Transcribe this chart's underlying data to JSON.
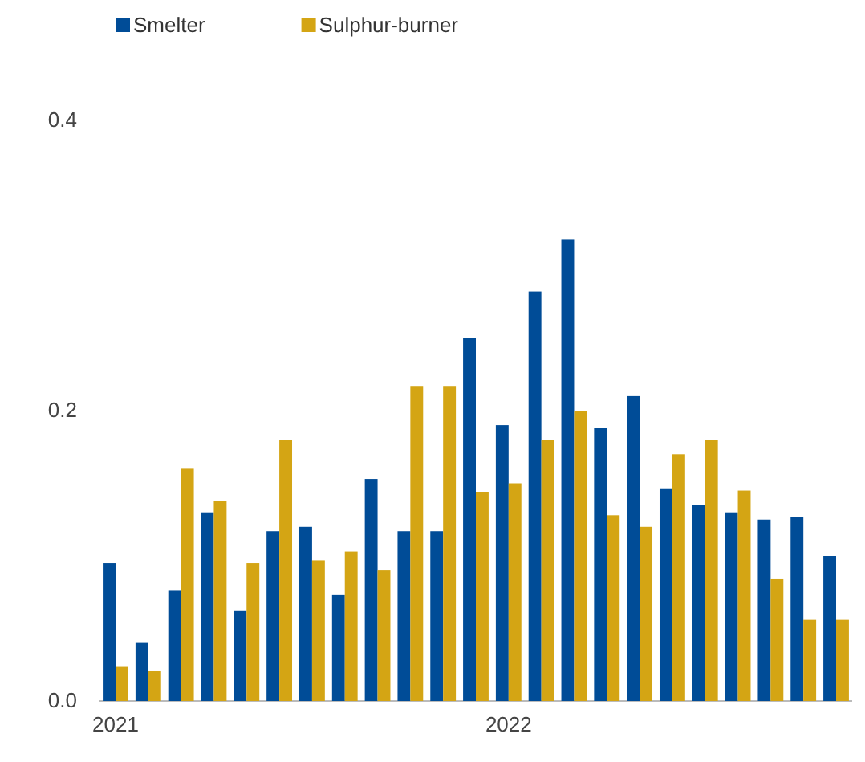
{
  "chart_data": {
    "type": "bar",
    "categories": [
      "2021",
      null,
      null,
      null,
      null,
      null,
      null,
      null,
      null,
      null,
      null,
      null,
      "2022",
      null,
      null,
      null,
      null,
      null,
      null,
      null,
      null,
      null,
      null
    ],
    "series": [
      {
        "name": "Smelter",
        "color": "#004c97",
        "values": [
          0.095,
          0.04,
          0.076,
          0.13,
          0.062,
          0.117,
          0.12,
          0.073,
          0.153,
          0.117,
          0.117,
          0.25,
          0.19,
          0.282,
          0.318,
          0.188,
          0.21,
          0.146,
          0.135,
          0.13,
          0.125,
          0.127,
          0.1
        ]
      },
      {
        "name": "Sulphur-burner",
        "color": "#d4a514",
        "values": [
          0.024,
          0.021,
          0.16,
          0.138,
          0.095,
          0.18,
          0.097,
          0.103,
          0.09,
          0.217,
          0.217,
          0.144,
          0.15,
          0.18,
          0.2,
          0.128,
          0.12,
          0.17,
          0.18,
          0.145,
          0.084,
          0.056,
          0.056
        ]
      }
    ],
    "ylim": [
      0,
      0.4
    ],
    "yticks": [
      {
        "value": 0,
        "label": "0.0"
      },
      {
        "value": 0.2,
        "label": "0.2"
      },
      {
        "value": 0.4,
        "label": "0.4"
      }
    ],
    "legend": "top",
    "grid": false
  }
}
